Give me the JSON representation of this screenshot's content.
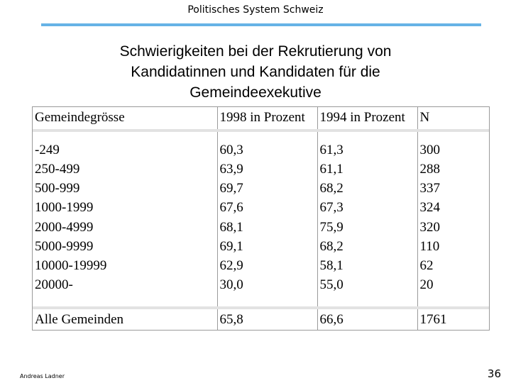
{
  "header": {
    "title": "Politisches System Schweiz"
  },
  "slide": {
    "title_lines": [
      "Schwierigkeiten bei der Rekrutierung von",
      "Kandidatinnen und Kandidaten für die",
      "Gemeindeexekutive"
    ]
  },
  "table": {
    "columns": [
      "Gemeindegrösse",
      "1998 in Prozent",
      "1994 in Prozent",
      "N"
    ],
    "rows": [
      [
        "-249",
        "60,3",
        "61,3",
        "300"
      ],
      [
        "250-499",
        "63,9",
        "61,1",
        "288"
      ],
      [
        "500-999",
        "69,7",
        "68,2",
        "337"
      ],
      [
        "1000-1999",
        "67,6",
        "67,3",
        "324"
      ],
      [
        "2000-4999",
        "68,1",
        "75,9",
        "320"
      ],
      [
        "5000-9999",
        "69,1",
        "68,2",
        "110"
      ],
      [
        "10000-19999",
        "62,9",
        "58,1",
        "62"
      ],
      [
        "20000-",
        "30,0",
        "55,0",
        "20"
      ]
    ],
    "total": [
      "Alle Gemeinden",
      "65,8",
      "66,6",
      "1761"
    ]
  },
  "footer": {
    "author": "Andreas Ladner",
    "page": "36"
  },
  "colors": {
    "rule": "#66b3e6",
    "grid": "#9a9a9a"
  }
}
